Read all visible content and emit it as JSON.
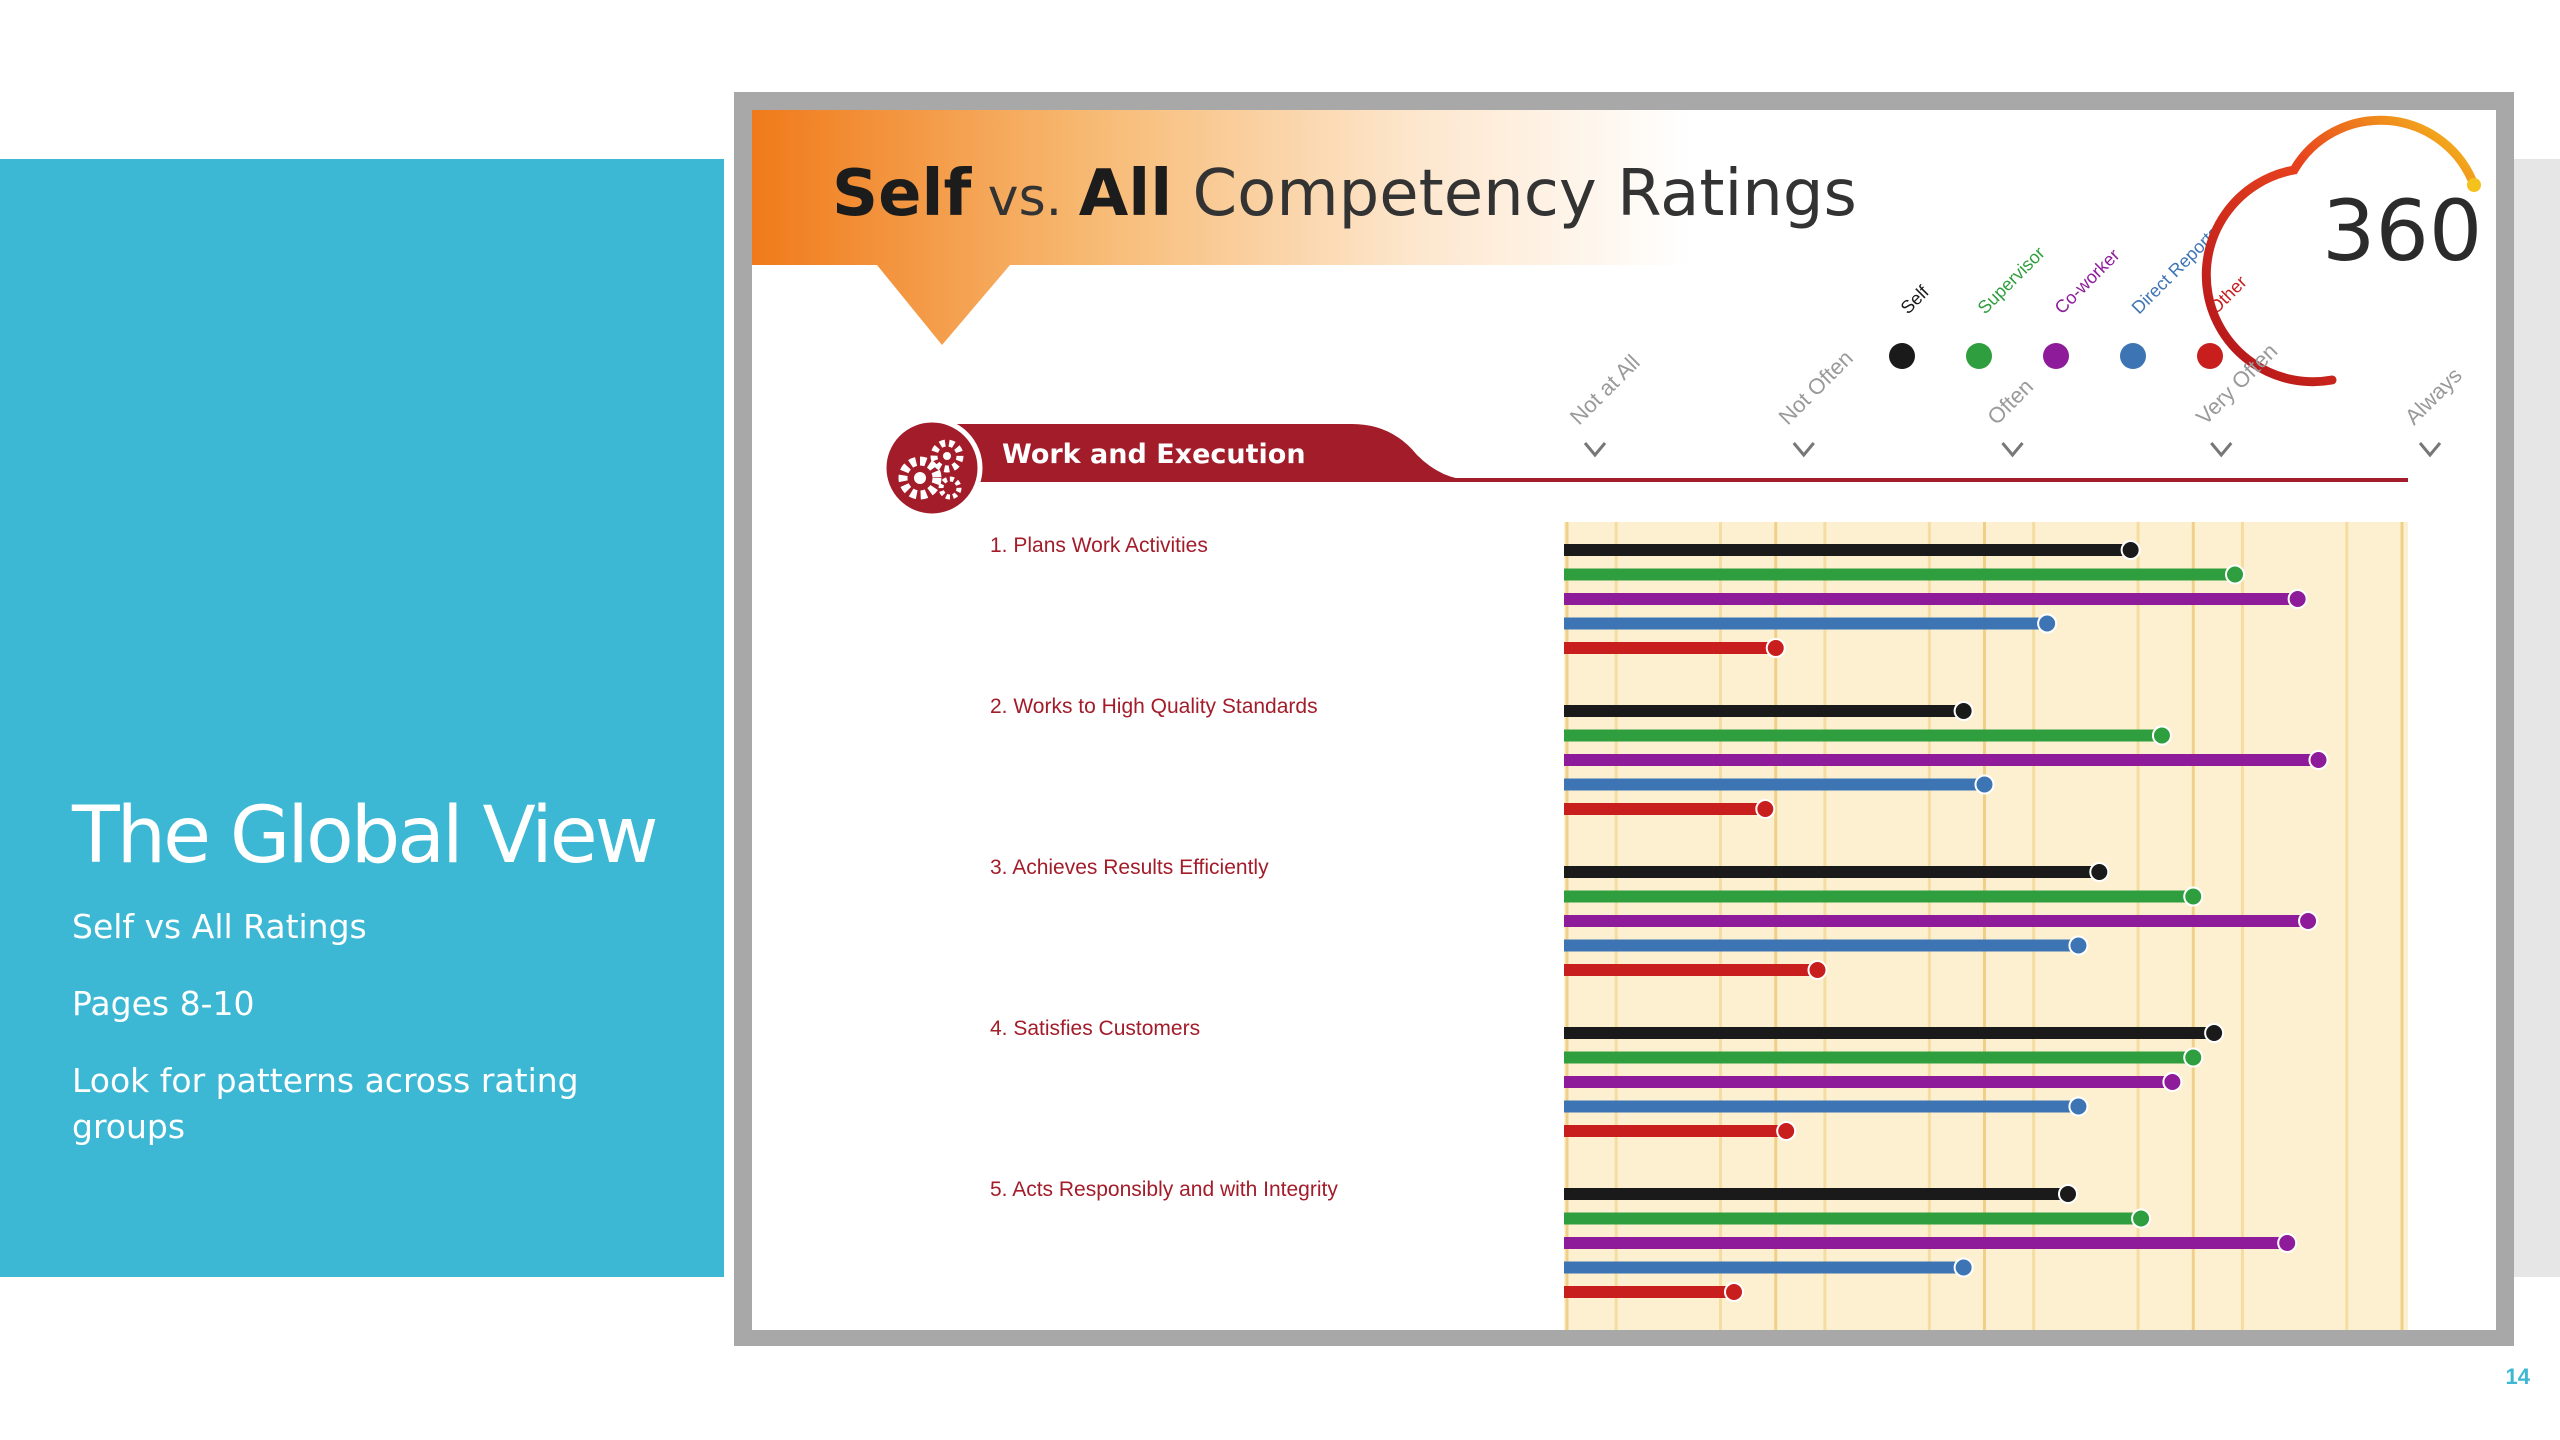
{
  "sidebar": {
    "title": "The Global View",
    "subtitle": "Self vs All Ratings",
    "pages": "Pages 8-10",
    "hint": "Look for patterns across rating groups"
  },
  "slide_number": "14",
  "report": {
    "title_part1": "Self",
    "title_part2": " vs. ",
    "title_part3": "All",
    "title_part4": " Competency Ratings",
    "logo_text": "360",
    "section_title": "Work and Execution",
    "legend": [
      {
        "label": "Self",
        "color": "#1a1a1a"
      },
      {
        "label": "Supervisor",
        "color": "#2e9e3e"
      },
      {
        "label": "Co-worker",
        "color": "#8e1b9a"
      },
      {
        "label": "Direct Reports",
        "color": "#3d74b4"
      },
      {
        "label": "Other",
        "color": "#c81e1e"
      }
    ],
    "scale": [
      "Not at All",
      "Not Often",
      "Often",
      "Very Often",
      "Always"
    ],
    "colors": {
      "accent": "#a31c2a",
      "chart_bg": "#fdf0d0",
      "title_orange": "#f28a22"
    }
  },
  "chart_data": {
    "type": "bar",
    "orientation": "horizontal",
    "scale_labels": [
      "Not at All",
      "Not Often",
      "Often",
      "Very Often",
      "Always"
    ],
    "xlim": [
      1,
      5
    ],
    "categories": [
      "1. Plans Work Activities",
      "2. Works to High Quality Standards",
      "3. Achieves Results Efficiently",
      "4. Satisfies Customers",
      "5. Acts Responsibly and with Integrity"
    ],
    "series": [
      {
        "name": "Self",
        "color": "#1a1a1a",
        "values": [
          3.7,
          2.9,
          3.55,
          4.1,
          3.4
        ]
      },
      {
        "name": "Supervisor",
        "color": "#2e9e3e",
        "values": [
          4.2,
          3.85,
          4.0,
          4.0,
          3.75
        ]
      },
      {
        "name": "Co-worker",
        "color": "#8e1b9a",
        "values": [
          4.5,
          4.6,
          4.55,
          3.9,
          4.45
        ]
      },
      {
        "name": "Direct Reports",
        "color": "#3d74b4",
        "values": [
          3.3,
          3.0,
          3.45,
          3.45,
          2.9
        ]
      },
      {
        "name": "Other",
        "color": "#c81e1e",
        "values": [
          2.0,
          1.95,
          2.2,
          2.05,
          1.8
        ]
      }
    ]
  }
}
